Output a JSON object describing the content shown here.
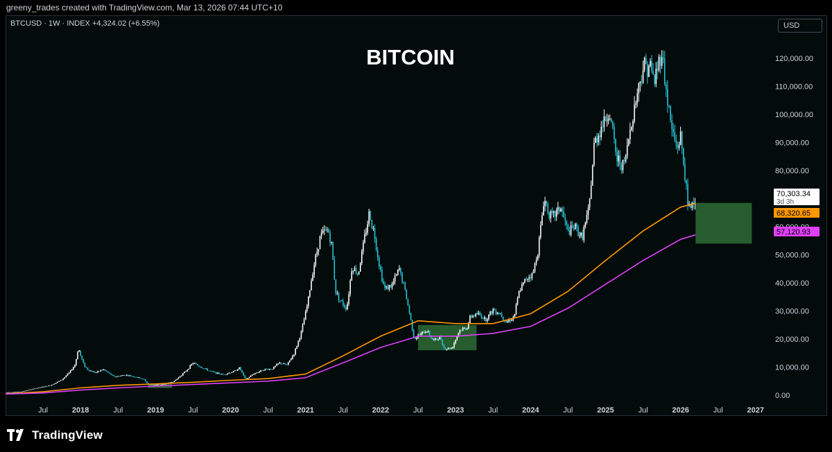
{
  "header": {
    "attribution": "greeny_trades created with TradingView.com, Mar 13, 2026 07:44 UTC+10"
  },
  "symbol_line": "BTCUSD · 1W · INDEX  +4,324.02 (+6.55%)",
  "currency_button": "USD",
  "footer": {
    "logo_text": "TradingView"
  },
  "colors": {
    "background": "#030b0b",
    "candle_up": "#ffffff",
    "candle_down": "#26c6da",
    "ma_orange": "#ff9800",
    "ma_magenta": "#e040fb",
    "zone_green": "#2e6b36"
  },
  "chart_data": {
    "type": "line",
    "title": "BITCOIN",
    "y_axis_labels": [
      "0.00",
      "10,000.00",
      "20,000.00",
      "30,000.00",
      "40,000.00",
      "50,000.00",
      "60,000.00",
      "70,000.00",
      "80,000.00",
      "90,000.00",
      "100,000.00",
      "110,000.00",
      "120,000.00"
    ],
    "ylim": [
      0,
      125000
    ],
    "x_axis_labels": [
      {
        "label": "Jul",
        "date": 2017.5
      },
      {
        "label": "2018",
        "date": 2018.0
      },
      {
        "label": "Jul",
        "date": 2018.5
      },
      {
        "label": "2019",
        "date": 2019.0
      },
      {
        "label": "Jul",
        "date": 2019.5
      },
      {
        "label": "2020",
        "date": 2020.0
      },
      {
        "label": "Jul",
        "date": 2020.5
      },
      {
        "label": "2021",
        "date": 2021.0
      },
      {
        "label": "Jul",
        "date": 2021.5
      },
      {
        "label": "2022",
        "date": 2022.0
      },
      {
        "label": "Jul",
        "date": 2022.5
      },
      {
        "label": "2023",
        "date": 2023.0
      },
      {
        "label": "Jul",
        "date": 2023.5
      },
      {
        "label": "2024",
        "date": 2024.0
      },
      {
        "label": "Jul",
        "date": 2024.5
      },
      {
        "label": "2025",
        "date": 2025.0
      },
      {
        "label": "Jul",
        "date": 2025.5
      },
      {
        "label": "2026",
        "date": 2026.0
      },
      {
        "label": "Jul",
        "date": 2026.5
      },
      {
        "label": "2027",
        "date": 2027.0
      }
    ],
    "xlim": [
      2017.0,
      2027.15
    ],
    "price_series": [
      [
        2017.0,
        1000
      ],
      [
        2017.2,
        1200
      ],
      [
        2017.4,
        2400
      ],
      [
        2017.6,
        3500
      ],
      [
        2017.75,
        5500
      ],
      [
        2017.85,
        8000
      ],
      [
        2017.93,
        11000
      ],
      [
        2017.97,
        17000
      ],
      [
        2018.0,
        14000
      ],
      [
        2018.05,
        10500
      ],
      [
        2018.1,
        9000
      ],
      [
        2018.2,
        8000
      ],
      [
        2018.3,
        9200
      ],
      [
        2018.45,
        6500
      ],
      [
        2018.6,
        7200
      ],
      [
        2018.75,
        6400
      ],
      [
        2018.85,
        5500
      ],
      [
        2018.9,
        3800
      ],
      [
        2018.96,
        3600
      ],
      [
        2019.1,
        3800
      ],
      [
        2019.25,
        5000
      ],
      [
        2019.4,
        8500
      ],
      [
        2019.5,
        11500
      ],
      [
        2019.6,
        10000
      ],
      [
        2019.75,
        8300
      ],
      [
        2019.9,
        7300
      ],
      [
        2020.05,
        8500
      ],
      [
        2020.12,
        9800
      ],
      [
        2020.2,
        5500
      ],
      [
        2020.3,
        7500
      ],
      [
        2020.45,
        9200
      ],
      [
        2020.55,
        9300
      ],
      [
        2020.65,
        11500
      ],
      [
        2020.75,
        10700
      ],
      [
        2020.85,
        15000
      ],
      [
        2020.95,
        23000
      ],
      [
        2021.03,
        33000
      ],
      [
        2021.1,
        45000
      ],
      [
        2021.2,
        57000
      ],
      [
        2021.3,
        59000
      ],
      [
        2021.35,
        53000
      ],
      [
        2021.4,
        37000
      ],
      [
        2021.48,
        33000
      ],
      [
        2021.55,
        31000
      ],
      [
        2021.62,
        46000
      ],
      [
        2021.7,
        43000
      ],
      [
        2021.78,
        55000
      ],
      [
        2021.85,
        65000
      ],
      [
        2021.92,
        57000
      ],
      [
        2021.98,
        47000
      ],
      [
        2022.05,
        38000
      ],
      [
        2022.15,
        39000
      ],
      [
        2022.25,
        45000
      ],
      [
        2022.32,
        38000
      ],
      [
        2022.38,
        30000
      ],
      [
        2022.45,
        20000
      ],
      [
        2022.55,
        22000
      ],
      [
        2022.62,
        23000
      ],
      [
        2022.7,
        19500
      ],
      [
        2022.8,
        20500
      ],
      [
        2022.85,
        16500
      ],
      [
        2022.95,
        16800
      ],
      [
        2023.05,
        23000
      ],
      [
        2023.15,
        24000
      ],
      [
        2023.2,
        28000
      ],
      [
        2023.3,
        29000
      ],
      [
        2023.4,
        27000
      ],
      [
        2023.5,
        30500
      ],
      [
        2023.6,
        29000
      ],
      [
        2023.68,
        26000
      ],
      [
        2023.78,
        28000
      ],
      [
        2023.85,
        37000
      ],
      [
        2023.95,
        42000
      ],
      [
        2024.03,
        43000
      ],
      [
        2024.1,
        52000
      ],
      [
        2024.18,
        70000
      ],
      [
        2024.28,
        63000
      ],
      [
        2024.4,
        67000
      ],
      [
        2024.5,
        58000
      ],
      [
        2024.6,
        60000
      ],
      [
        2024.68,
        56000
      ],
      [
        2024.78,
        66000
      ],
      [
        2024.85,
        90000
      ],
      [
        2024.95,
        96000
      ],
      [
        2025.05,
        101000
      ],
      [
        2025.15,
        84000
      ],
      [
        2025.25,
        82000
      ],
      [
        2025.33,
        95000
      ],
      [
        2025.4,
        105000
      ],
      [
        2025.5,
        117000
      ],
      [
        2025.58,
        118000
      ],
      [
        2025.65,
        112000
      ],
      [
        2025.75,
        123000
      ],
      [
        2025.8,
        110000
      ],
      [
        2025.88,
        95000
      ],
      [
        2025.95,
        88000
      ],
      [
        2026.0,
        92000
      ],
      [
        2026.06,
        78000
      ],
      [
        2026.1,
        66000
      ],
      [
        2026.14,
        68000
      ],
      [
        2026.2,
        70303
      ]
    ],
    "series": [
      {
        "color": "#ff9800",
        "values": [
          [
            2017.0,
            500
          ],
          [
            2017.5,
            1200
          ],
          [
            2018.0,
            2600
          ],
          [
            2018.5,
            3500
          ],
          [
            2019.0,
            4000
          ],
          [
            2019.5,
            4600
          ],
          [
            2020.0,
            5300
          ],
          [
            2020.5,
            5900
          ],
          [
            2021.0,
            7500
          ],
          [
            2021.5,
            14000
          ],
          [
            2022.0,
            21000
          ],
          [
            2022.5,
            26500
          ],
          [
            2023.0,
            25500
          ],
          [
            2023.5,
            25500
          ],
          [
            2024.0,
            29000
          ],
          [
            2024.5,
            37000
          ],
          [
            2025.0,
            48000
          ],
          [
            2025.5,
            58500
          ],
          [
            2026.0,
            67000
          ],
          [
            2026.2,
            68320.65
          ]
        ]
      },
      {
        "color": "#e040fb",
        "values": [
          [
            2017.0,
            400
          ],
          [
            2017.5,
            800
          ],
          [
            2018.0,
            1800
          ],
          [
            2018.5,
            2600
          ],
          [
            2019.0,
            3200
          ],
          [
            2019.5,
            3800
          ],
          [
            2020.0,
            4400
          ],
          [
            2020.5,
            5000
          ],
          [
            2021.0,
            6200
          ],
          [
            2021.5,
            11500
          ],
          [
            2022.0,
            17000
          ],
          [
            2022.5,
            21000
          ],
          [
            2023.0,
            21000
          ],
          [
            2023.5,
            22000
          ],
          [
            2024.0,
            24500
          ],
          [
            2024.5,
            31000
          ],
          [
            2025.0,
            39500
          ],
          [
            2025.5,
            48000
          ],
          [
            2026.0,
            55500
          ],
          [
            2026.2,
            57120.93
          ]
        ]
      }
    ],
    "zones": [
      {
        "x0": 2018.9,
        "x1": 2019.22,
        "y0": 2500,
        "y1": 4000
      },
      {
        "x0": 2022.5,
        "x1": 2023.28,
        "y0": 16000,
        "y1": 25000
      },
      {
        "x0": 2026.2,
        "x1": 2026.95,
        "y0": 54000,
        "y1": 68500
      }
    ],
    "price_labels": [
      {
        "value": 70303.34,
        "text": "70,303.34",
        "subtext": "3d 3h",
        "bg": "#ffffff",
        "fg": "#000000"
      },
      {
        "value": 68320.65,
        "text": "68,320.65",
        "bg": "#ff9800",
        "fg": "#000000"
      },
      {
        "value": 57120.93,
        "text": "57,120.93",
        "bg": "#e040fb",
        "fg": "#000000"
      }
    ]
  }
}
